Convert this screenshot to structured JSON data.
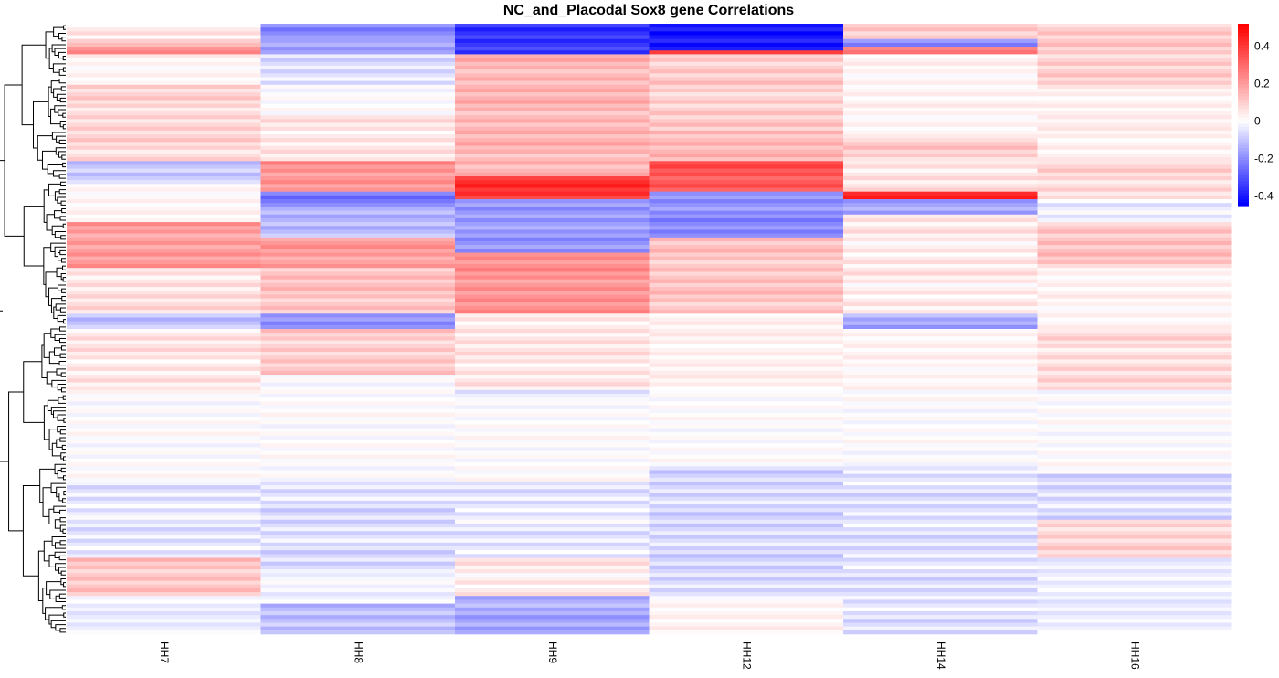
{
  "chart_data": {
    "type": "heatmap",
    "title": "NC_and_Placodal Sox8 gene Correlations",
    "columns": [
      "HH7",
      "HH8",
      "HH9",
      "HH12",
      "HH14",
      "HH16"
    ],
    "color_scale": {
      "low": "#0000FF",
      "mid": "#FFFFFF",
      "high": "#FF0000",
      "range": [
        -0.45,
        0.52
      ],
      "ticks": [
        "0.4",
        "0.2",
        "0",
        "-0.2",
        "-0.4"
      ],
      "tick_values": [
        0.4,
        0.2,
        0,
        -0.2,
        -0.4
      ]
    },
    "row_count": 160,
    "row_dendrogram": true,
    "column_segments": [
      [
        {
          "from": 0,
          "to": 4,
          "v": 0.05
        },
        {
          "from": 4,
          "to": 6,
          "v": 0.1
        },
        {
          "from": 6,
          "to": 8,
          "v": 0.25
        },
        {
          "from": 8,
          "to": 16,
          "v": 0.02
        },
        {
          "from": 16,
          "to": 36,
          "v": 0.08
        },
        {
          "from": 36,
          "to": 42,
          "v": -0.1
        },
        {
          "from": 42,
          "to": 52,
          "v": 0.02
        },
        {
          "from": 52,
          "to": 64,
          "v": 0.2
        },
        {
          "from": 64,
          "to": 76,
          "v": 0.06
        },
        {
          "from": 76,
          "to": 80,
          "v": -0.1
        },
        {
          "from": 80,
          "to": 96,
          "v": 0.05
        },
        {
          "from": 96,
          "to": 120,
          "v": 0.0
        },
        {
          "from": 120,
          "to": 140,
          "v": -0.04
        },
        {
          "from": 140,
          "to": 150,
          "v": 0.12
        },
        {
          "from": 150,
          "to": 160,
          "v": -0.03
        }
      ],
      [
        {
          "from": 0,
          "to": 4,
          "v": -0.22
        },
        {
          "from": 4,
          "to": 8,
          "v": -0.15
        },
        {
          "from": 8,
          "to": 16,
          "v": -0.06
        },
        {
          "from": 16,
          "to": 24,
          "v": 0.0
        },
        {
          "from": 24,
          "to": 36,
          "v": 0.05
        },
        {
          "from": 36,
          "to": 44,
          "v": 0.22
        },
        {
          "from": 44,
          "to": 48,
          "v": -0.25
        },
        {
          "from": 48,
          "to": 56,
          "v": -0.12
        },
        {
          "from": 56,
          "to": 64,
          "v": 0.2
        },
        {
          "from": 64,
          "to": 76,
          "v": 0.12
        },
        {
          "from": 76,
          "to": 80,
          "v": -0.2
        },
        {
          "from": 80,
          "to": 92,
          "v": 0.1
        },
        {
          "from": 92,
          "to": 120,
          "v": 0.0
        },
        {
          "from": 120,
          "to": 144,
          "v": -0.06
        },
        {
          "from": 144,
          "to": 152,
          "v": -0.02
        },
        {
          "from": 152,
          "to": 160,
          "v": -0.12
        }
      ],
      [
        {
          "from": 0,
          "to": 8,
          "v": -0.35
        },
        {
          "from": 8,
          "to": 40,
          "v": 0.15
        },
        {
          "from": 40,
          "to": 46,
          "v": 0.42
        },
        {
          "from": 46,
          "to": 60,
          "v": -0.18
        },
        {
          "from": 60,
          "to": 76,
          "v": 0.22
        },
        {
          "from": 76,
          "to": 96,
          "v": 0.05
        },
        {
          "from": 96,
          "to": 98,
          "v": -0.08
        },
        {
          "from": 98,
          "to": 120,
          "v": 0.0
        },
        {
          "from": 120,
          "to": 140,
          "v": -0.04
        },
        {
          "from": 140,
          "to": 150,
          "v": 0.04
        },
        {
          "from": 150,
          "to": 160,
          "v": -0.15
        }
      ],
      [
        {
          "from": 0,
          "to": 7,
          "v": -0.42
        },
        {
          "from": 7,
          "to": 8,
          "v": 0.45
        },
        {
          "from": 8,
          "to": 28,
          "v": 0.1
        },
        {
          "from": 28,
          "to": 36,
          "v": 0.15
        },
        {
          "from": 36,
          "to": 44,
          "v": 0.35
        },
        {
          "from": 44,
          "to": 56,
          "v": -0.2
        },
        {
          "from": 56,
          "to": 76,
          "v": 0.12
        },
        {
          "from": 76,
          "to": 96,
          "v": 0.03
        },
        {
          "from": 96,
          "to": 116,
          "v": 0.0
        },
        {
          "from": 116,
          "to": 150,
          "v": -0.07
        },
        {
          "from": 150,
          "to": 160,
          "v": 0.02
        }
      ],
      [
        {
          "from": 0,
          "to": 4,
          "v": 0.12
        },
        {
          "from": 4,
          "to": 6,
          "v": -0.2
        },
        {
          "from": 6,
          "to": 8,
          "v": 0.25
        },
        {
          "from": 8,
          "to": 30,
          "v": 0.02
        },
        {
          "from": 30,
          "to": 36,
          "v": 0.1
        },
        {
          "from": 36,
          "to": 44,
          "v": 0.05
        },
        {
          "from": 44,
          "to": 46,
          "v": 0.45
        },
        {
          "from": 46,
          "to": 50,
          "v": -0.15
        },
        {
          "from": 50,
          "to": 76,
          "v": 0.04
        },
        {
          "from": 76,
          "to": 80,
          "v": -0.15
        },
        {
          "from": 80,
          "to": 96,
          "v": 0.02
        },
        {
          "from": 96,
          "to": 116,
          "v": 0.0
        },
        {
          "from": 116,
          "to": 160,
          "v": -0.05
        }
      ],
      [
        {
          "from": 0,
          "to": 16,
          "v": 0.1
        },
        {
          "from": 16,
          "to": 36,
          "v": 0.03
        },
        {
          "from": 36,
          "to": 46,
          "v": 0.08
        },
        {
          "from": 46,
          "to": 52,
          "v": -0.04
        },
        {
          "from": 52,
          "to": 64,
          "v": 0.12
        },
        {
          "from": 64,
          "to": 80,
          "v": 0.02
        },
        {
          "from": 80,
          "to": 96,
          "v": 0.07
        },
        {
          "from": 96,
          "to": 118,
          "v": 0.0
        },
        {
          "from": 118,
          "to": 130,
          "v": -0.06
        },
        {
          "from": 130,
          "to": 140,
          "v": 0.08
        },
        {
          "from": 140,
          "to": 160,
          "v": -0.03
        }
      ]
    ]
  }
}
